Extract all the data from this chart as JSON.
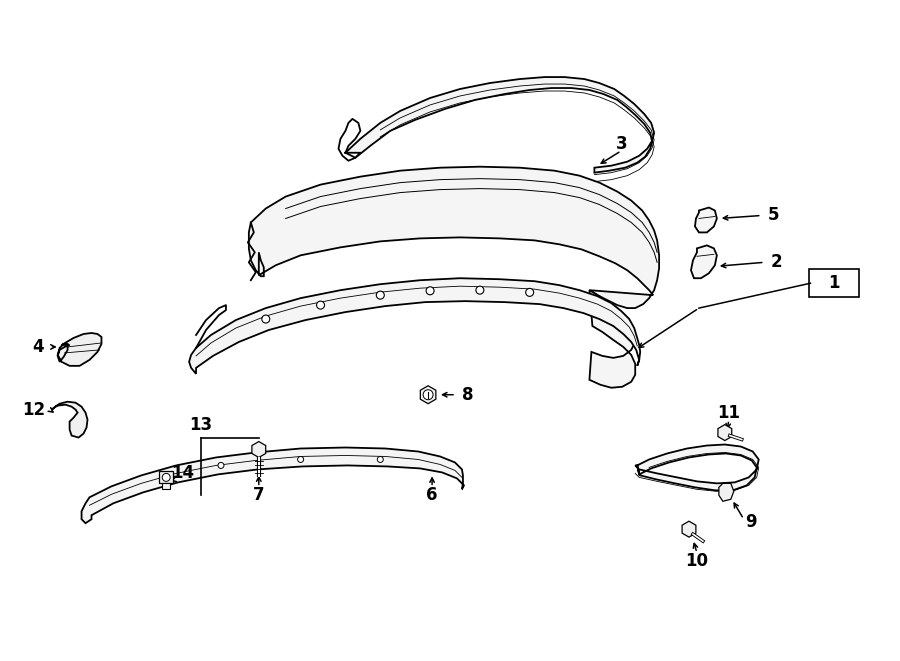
{
  "background_color": "#ffffff",
  "line_color": "#000000",
  "fill_color": "#f0f0f0",
  "figsize": [
    9.0,
    6.61
  ],
  "dpi": 100
}
